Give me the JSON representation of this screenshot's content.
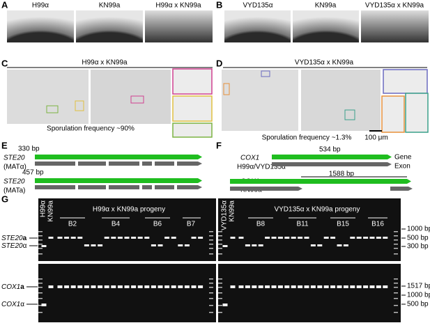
{
  "panels": {
    "A": {
      "label": "A",
      "images": [
        "H99α",
        "KN99a",
        "H99α x KN99a"
      ]
    },
    "B": {
      "label": "B",
      "images": [
        "VYD135α",
        "KN99a",
        "VYD135α x KN99a"
      ]
    },
    "C": {
      "label": "C",
      "title": "H99α x KN99a",
      "caption": "Sporulation frequency ~90%"
    },
    "D": {
      "label": "D",
      "title": "VYD135α x KN99a",
      "caption": "Sporulation frequency ~1.3%",
      "scale_bar": "100 μm"
    },
    "E": {
      "label": "E",
      "tracks": [
        {
          "gene": "STE20",
          "mating_type": "(MATα)",
          "annotation": "330 bp"
        },
        {
          "gene": "STE20",
          "mating_type": "(MATa)",
          "annotation": "457 bp"
        }
      ]
    },
    "F": {
      "label": "F",
      "legend": [
        "Gene",
        "Exon"
      ],
      "tracks": [
        {
          "gene": "COX1",
          "strain": "H99α/VYD135α",
          "annotation": "534 bp"
        },
        {
          "gene": "COX1",
          "strain": "KN99a",
          "annotation": "1588 bp"
        }
      ]
    },
    "G": {
      "label": "G",
      "gels": [
        {
          "lanes": [
            "H99α",
            "KN99a"
          ],
          "title": "H99α x KN99a progeny",
          "groups": [
            "B2",
            "B4",
            "B6",
            "B7"
          ]
        },
        {
          "lanes": [
            "VYD135α",
            "KN99a"
          ],
          "title": "VYD135α x KN99a progeny",
          "groups": [
            "B8",
            "B11",
            "B15",
            "B16"
          ]
        }
      ],
      "band_labels": [
        {
          "gene": "STE20",
          "allele": "a"
        },
        {
          "gene": "STE20",
          "allele": "α"
        },
        {
          "gene": "COX1",
          "allele": "a"
        },
        {
          "gene": "COX1",
          "allele": "α"
        }
      ],
      "ladder": [
        "1000 bp",
        "500 bp",
        "300 bp",
        "1517 bp",
        "1000 bp",
        "500 bp"
      ]
    }
  }
}
